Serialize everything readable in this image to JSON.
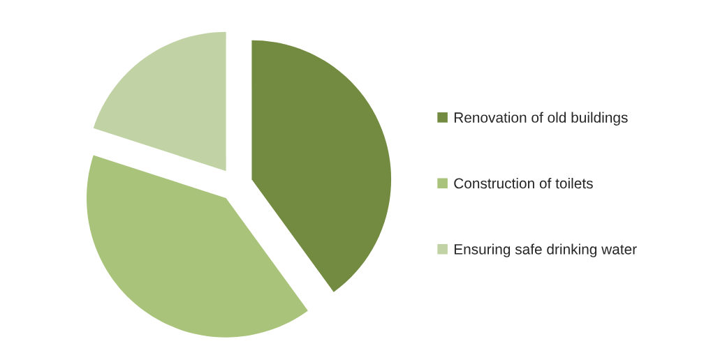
{
  "chart_data": {
    "type": "pie",
    "categories": [
      "Renovation of old buildings",
      "Construction of toilets",
      "Ensuring safe drinking water"
    ],
    "values": [
      40,
      40,
      20
    ],
    "colors": [
      "#738b41",
      "#a9c47a",
      "#c1d3a4"
    ],
    "legend": "right"
  }
}
